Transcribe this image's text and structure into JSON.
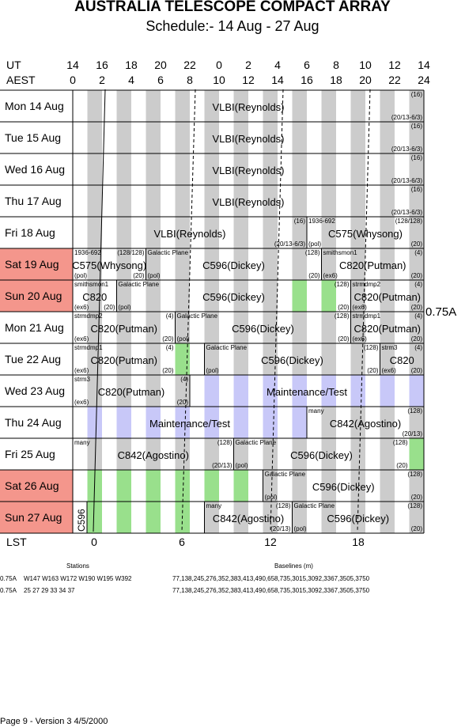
{
  "title": "AUSTRALIA TELESCOPE COMPACT ARRAY",
  "subtitle": "Schedule:- 14 Aug - 27 Aug",
  "ut_label": "UT",
  "aest_label": "AEST",
  "lst_label": "LST",
  "ut_ticks": [
    "14",
    "16",
    "18",
    "20",
    "22",
    "0",
    "2",
    "4",
    "6",
    "8",
    "10",
    "12",
    "14"
  ],
  "aest_ticks": [
    "0",
    "2",
    "4",
    "6",
    "8",
    "10",
    "12",
    "14",
    "16",
    "18",
    "20",
    "22",
    "24"
  ],
  "lst_ticks": [
    "0",
    "6",
    "12",
    "18"
  ],
  "array_config": "0.75A",
  "days": [
    {
      "label": "Mon  14 Aug",
      "weekend": false
    },
    {
      "label": "Tue   15 Aug",
      "weekend": false
    },
    {
      "label": "Wed  16 Aug",
      "weekend": false
    },
    {
      "label": "Thu   17 Aug",
      "weekend": false
    },
    {
      "label": "Fri    18 Aug",
      "weekend": false
    },
    {
      "label": "Sat   19 Aug",
      "weekend": true
    },
    {
      "label": "Sun  20 Aug",
      "weekend": true
    },
    {
      "label": "Mon  21 Aug",
      "weekend": false
    },
    {
      "label": "Tue   22 Aug",
      "weekend": false
    },
    {
      "label": "Wed  23 Aug",
      "weekend": false
    },
    {
      "label": "Thu   24 Aug",
      "weekend": false
    },
    {
      "label": "Fri    25 Aug",
      "weekend": false
    },
    {
      "label": "Sat   26 Aug",
      "weekend": true
    },
    {
      "label": "Sun  27 Aug",
      "weekend": true
    }
  ],
  "blocks": [
    {
      "row": 0,
      "start": 0,
      "end": 24,
      "name": "VLBI(Reynolds)",
      "tl": "",
      "tr": "(16)",
      "bl": "",
      "br": "(20/13-6/3)"
    },
    {
      "row": 1,
      "start": 0,
      "end": 24,
      "name": "VLBI(Reynolds)",
      "tl": "",
      "tr": "(16)",
      "bl": "",
      "br": "(20/13-6/3)"
    },
    {
      "row": 2,
      "start": 0,
      "end": 24,
      "name": "VLBI(Reynolds)",
      "tl": "",
      "tr": "(16)",
      "bl": "",
      "br": "(20/13-6/3)"
    },
    {
      "row": 3,
      "start": 0,
      "end": 24,
      "name": "VLBI(Reynolds)",
      "tl": "",
      "tr": "(16)",
      "bl": "",
      "br": "(20/13-6/3)"
    },
    {
      "row": 4,
      "start": 0,
      "end": 16,
      "name": "VLBI(Reynolds)",
      "tl": "",
      "tr": "(16)",
      "bl": "",
      "br": "(20/13-6/3)"
    },
    {
      "row": 4,
      "start": 16,
      "end": 24,
      "name": "C575(Whysong)",
      "tl": "1936-692",
      "tr": "(128/128)",
      "bl": "(pol)",
      "br": "(20)"
    },
    {
      "row": 5,
      "start": 0,
      "end": 5,
      "name": "C575(Whysong)",
      "tl": "1936-692",
      "tr": "(128/128)",
      "bl": "(pol)",
      "br": "(20)"
    },
    {
      "row": 5,
      "start": 5,
      "end": 17,
      "name": "C596(Dickey)",
      "tl": "Galactic Plane",
      "tr": "(128)",
      "bl": "(pol)",
      "br": "(20)"
    },
    {
      "row": 5,
      "start": 17,
      "end": 24,
      "name": "C820(Putman)",
      "tl": "smithsmon1",
      "tr": "(4)",
      "bl": "(ex6)",
      "br": "(20)"
    },
    {
      "row": 6,
      "start": 0,
      "end": 3,
      "name": "C820",
      "tl": "smithsmon1",
      "tr": "",
      "bl": "(ex6)",
      "br": "(20)"
    },
    {
      "row": 6,
      "start": 3,
      "end": 19,
      "name": "C596(Dickey)",
      "tl": "Galactic Plane",
      "tr": "(128)",
      "bl": "(pol)",
      "br": "(20)"
    },
    {
      "row": 6,
      "start": 19,
      "end": 24,
      "name": "C820(Putman)",
      "tl": "strmdmp2",
      "tr": "(4)",
      "bl": "(ex6)",
      "br": "(20)"
    },
    {
      "row": 7,
      "start": 0,
      "end": 7,
      "name": "C820(Putman)",
      "tl": "strmdmp2",
      "tr": "(4)",
      "bl": "(ex6)",
      "br": "(20)"
    },
    {
      "row": 7,
      "start": 7,
      "end": 19,
      "name": "C596(Dickey)",
      "tl": "Galactic Plane",
      "tr": "(128)",
      "bl": "(pol)",
      "br": "(20)"
    },
    {
      "row": 7,
      "start": 19,
      "end": 24,
      "name": "C820(Putman)",
      "tl": "strmdmp1",
      "tr": "(4)",
      "bl": "(ex6)",
      "br": "(20)"
    },
    {
      "row": 8,
      "start": 0,
      "end": 7,
      "name": "C820(Putman)",
      "tl": "strmdmp1",
      "tr": "(4)",
      "bl": "(ex6)",
      "br": "(20)"
    },
    {
      "row": 8,
      "start": 9,
      "end": 21,
      "name": "C596(Dickey)",
      "tl": "Galactic Plane",
      "tr": "(128)",
      "bl": "(pol)",
      "br": "(20)"
    },
    {
      "row": 8,
      "start": 21,
      "end": 24,
      "name": "C820",
      "tl": "strm3",
      "tr": "(4)",
      "bl": "(ex6)",
      "br": "(20)"
    },
    {
      "row": 9,
      "start": 0,
      "end": 8,
      "name": "C820(Putman)",
      "tl": "strm3",
      "tr": "(4)",
      "bl": "(ex6)",
      "br": "(20)"
    },
    {
      "row": 9,
      "start": 8,
      "end": 24,
      "name": "Maintenance/Test",
      "tl": "",
      "tr": "",
      "bl": "",
      "br": ""
    },
    {
      "row": 10,
      "start": 0,
      "end": 16,
      "name": "Maintenance/Test",
      "tl": "",
      "tr": "",
      "bl": "",
      "br": ""
    },
    {
      "row": 10,
      "start": 16,
      "end": 24,
      "name": "C842(Agostino)",
      "tl": "many",
      "tr": "(128)",
      "bl": "",
      "br": "(20/13)"
    },
    {
      "row": 11,
      "start": 0,
      "end": 11,
      "name": "C842(Agostino)",
      "tl": "many",
      "tr": "(128)",
      "bl": "",
      "br": "(20/13)"
    },
    {
      "row": 11,
      "start": 11,
      "end": 23,
      "name": "C596(Dickey)",
      "tl": "Galactic Plane",
      "tr": "(128)",
      "bl": "(pol)",
      "br": "(20)"
    },
    {
      "row": 12,
      "start": 13,
      "end": 24,
      "name": "C596(Dickey)",
      "tl": "Galactic Plane",
      "tr": "(128)",
      "bl": "(pol)",
      "br": "(20)"
    },
    {
      "row": 13,
      "start": 9,
      "end": 15,
      "name": "C842(Agostino)",
      "tl": "many",
      "tr": "(128)",
      "bl": "",
      "br": "(20/13)"
    },
    {
      "row": 13,
      "start": 15,
      "end": 24,
      "name": "C596(Dickey)",
      "tl": "Galactic Plane",
      "tr": "(128)",
      "bl": "(pol)",
      "br": "(20)"
    }
  ],
  "side_label_c596": "C596",
  "stations_header": "Stations",
  "baselines_header": "Baselines (m)",
  "station_rows": [
    {
      "config": "0.75A",
      "stations": "W147 W163 W172 W190 W195 W392",
      "baselines": "77,138,245,276,352,383,413,490,658,735,3015,3092,3367,3505,3750"
    },
    {
      "config": "0.75A",
      "stations": "25 27 29 33 34 37",
      "baselines": "77,138,245,276,352,383,413,490,658,735,3015,3092,3367,3505,3750"
    }
  ],
  "footer": "Page 9 - Version 3  4/5/2000",
  "colors": {
    "grey": "#cccccc",
    "green": "#99e08c",
    "lavender": "#c8c8f8",
    "weekend": "#f4968c"
  }
}
